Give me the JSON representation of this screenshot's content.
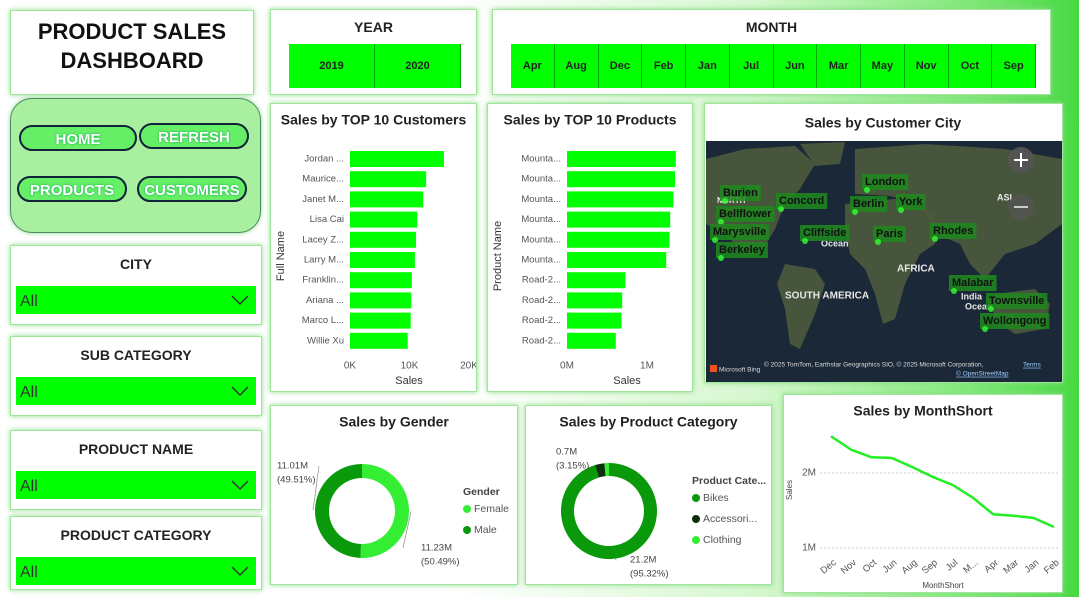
{
  "header": {
    "title": "PRODUCT SALES DASHBOARD"
  },
  "buttons": [
    "HOME",
    "REFRESH",
    "PRODUCTS",
    "CUSTOMERS"
  ],
  "year": {
    "title": "YEAR",
    "options": [
      "2019",
      "2020"
    ]
  },
  "month": {
    "title": "MONTH",
    "options": [
      "Apr",
      "Aug",
      "Dec",
      "Feb",
      "Jan",
      "Jul",
      "Jun",
      "Mar",
      "May",
      "Nov",
      "Oct",
      "Sep"
    ]
  },
  "filters": [
    {
      "title": "CITY",
      "value": "All"
    },
    {
      "title": "SUB CATEGORY",
      "value": "All"
    },
    {
      "title": "PRODUCT NAME",
      "value": "All"
    },
    {
      "title": "PRODUCT CATEGORY",
      "value": "All"
    }
  ],
  "map": {
    "title": "Sales by Customer City",
    "cities": [
      "London",
      "Burien",
      "Concord",
      "Berlin",
      "York",
      "Bellflower",
      "Marysville",
      "Cliffside",
      "Paris",
      "Rhodes",
      "Berkeley",
      "Malabar",
      "Townsville",
      "Wollongong"
    ],
    "regions": [
      "NORTH",
      "Ocean",
      "AFRICA",
      "SOUTH AMERICA",
      "ASI",
      "India",
      "Ocean"
    ],
    "credits": {
      "logo": "Microsoft Bing",
      "text": "© 2025 TomTom, Earthstar Geographics SIO, © 2025 Microsoft Corporation,",
      "terms": "Terms",
      "osm": "© OpenStreetMap"
    }
  },
  "chart_data": [
    {
      "type": "bar",
      "orientation": "horizontal",
      "title": "Sales by TOP 10 Customers",
      "x_label": "Sales",
      "y_label": "Full Name",
      "categories": [
        "Jordan ...",
        "Maurice...",
        "Janet M...",
        "Lisa Cai",
        "Lacey Z...",
        "Larry M...",
        "Franklin...",
        "Ariana ...",
        "Marco L...",
        "Willie Xu"
      ],
      "values": [
        15800,
        12800,
        12300,
        11300,
        11100,
        10900,
        10400,
        10300,
        10200,
        9700
      ],
      "color": "#00ff00",
      "xlim": [
        0,
        20000
      ],
      "xticks": [
        {
          "value": 0,
          "label": "0K"
        },
        {
          "value": 10000,
          "label": "10K"
        },
        {
          "value": 20000,
          "label": "20K"
        }
      ]
    },
    {
      "type": "bar",
      "orientation": "horizontal",
      "title": "Sales by TOP 10 Products",
      "x_label": "Sales",
      "y_label": "Product Name",
      "categories": [
        "Mounta...",
        "Mounta...",
        "Mounta...",
        "Mounta...",
        "Mounta...",
        "Mounta...",
        "Road-2...",
        "Road-2...",
        "Road-2...",
        "Road-2..."
      ],
      "values": [
        1360000,
        1350000,
        1330000,
        1290000,
        1280000,
        1240000,
        730000,
        690000,
        680000,
        610000
      ],
      "color": "#00ff00",
      "xlim": [
        0,
        1400000
      ],
      "xticks": [
        {
          "value": 0,
          "label": "0M"
        },
        {
          "value": 1000000,
          "label": "1M"
        }
      ]
    },
    {
      "type": "pie",
      "donut": true,
      "title": "Sales by Gender",
      "legend_title": "Gender",
      "categories": [
        "Female",
        "Male"
      ],
      "values": [
        11230000,
        11010000
      ],
      "value_labels": [
        "11.23M",
        "11.01M"
      ],
      "percent_labels": [
        "(50.49%)",
        "(49.51%)"
      ],
      "colors": [
        "#33ee33",
        "#0a990a"
      ]
    },
    {
      "type": "pie",
      "donut": true,
      "title": "Sales by Product Category",
      "legend_title": "Product Cate...",
      "categories": [
        "Bikes",
        "Accessori...",
        "Clothing"
      ],
      "values": [
        21200000,
        700000,
        340000
      ],
      "value_labels": [
        "21.2M",
        "0.7M",
        null
      ],
      "percent_labels": [
        "(95.32%)",
        "(3.15%)",
        null
      ],
      "colors": [
        "#0a990a",
        "#0b2e0b",
        "#33ee33"
      ]
    },
    {
      "type": "line",
      "title": "Sales by MonthShort",
      "x_label": "MonthShort",
      "y_label": "Sales",
      "categories": [
        "Dec",
        "Nov",
        "Oct",
        "Jun",
        "Aug",
        "Sep",
        "Jul",
        "M...",
        "Apr",
        "Mar",
        "Jan",
        "Feb"
      ],
      "values": [
        2490000,
        2310000,
        2210000,
        2200000,
        2080000,
        1950000,
        1840000,
        1670000,
        1450000,
        1430000,
        1400000,
        1280000
      ],
      "color": "#22ee22",
      "ylim": [
        900000,
        2600000
      ],
      "yticks": [
        {
          "value": 1000000,
          "label": "1M"
        },
        {
          "value": 2000000,
          "label": "2M"
        }
      ],
      "grid": true
    }
  ]
}
